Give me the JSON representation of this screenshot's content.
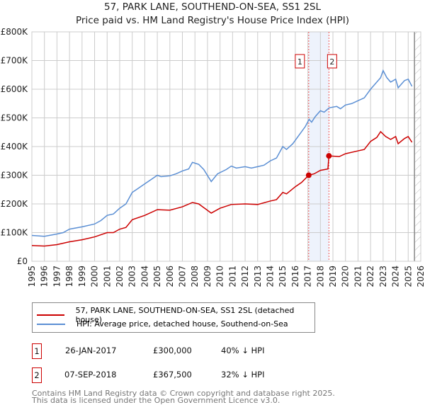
{
  "title": "57, PARK LANE, SOUTHEND-ON-SEA, SS1 2SL",
  "subtitle": "Price paid vs. HM Land Registry's House Price Index (HPI)",
  "chart_data": {
    "type": "line",
    "title": "57, PARK LANE, SOUTHEND-ON-SEA, SS1 2SL",
    "xlim": [
      1995,
      2026
    ],
    "ylim": [
      0,
      800000
    ],
    "xticks": [
      "1995",
      "1996",
      "1997",
      "1998",
      "1999",
      "2000",
      "2001",
      "2002",
      "2003",
      "2004",
      "2005",
      "2006",
      "2007",
      "2008",
      "2009",
      "2010",
      "2011",
      "2012",
      "2013",
      "2014",
      "2015",
      "2016",
      "2017",
      "2018",
      "2019",
      "2020",
      "2021",
      "2022",
      "2023",
      "2024",
      "2025",
      "2026"
    ],
    "yticks": [
      {
        "v": 0,
        "label": "£0"
      },
      {
        "v": 100000,
        "label": "£100K"
      },
      {
        "v": 200000,
        "label": "£200K"
      },
      {
        "v": 300000,
        "label": "£300K"
      },
      {
        "v": 400000,
        "label": "£400K"
      },
      {
        "v": 500000,
        "label": "£500K"
      },
      {
        "v": 600000,
        "label": "£600K"
      },
      {
        "v": 700000,
        "label": "£700K"
      },
      {
        "v": 800000,
        "label": "£800K"
      }
    ],
    "grid": true,
    "series": [
      {
        "name": "57, PARK LANE, SOUTHEND-ON-SEA, SS1 2SL (detached house)",
        "color": "#cc0000",
        "points": [
          [
            1995,
            55
          ],
          [
            1996,
            53
          ],
          [
            1997,
            58
          ],
          [
            1998,
            68
          ],
          [
            1999,
            75
          ],
          [
            2000,
            85
          ],
          [
            2001,
            100
          ],
          [
            2001.5,
            100
          ],
          [
            2002,
            112
          ],
          [
            2002.5,
            118
          ],
          [
            2003,
            145
          ],
          [
            2004,
            160
          ],
          [
            2005,
            180
          ],
          [
            2006,
            178
          ],
          [
            2007,
            190
          ],
          [
            2007.8,
            205
          ],
          [
            2008.3,
            200
          ],
          [
            2009.3,
            168
          ],
          [
            2010,
            185
          ],
          [
            2010.9,
            198
          ],
          [
            2012,
            200
          ],
          [
            2013,
            198
          ],
          [
            2014,
            210
          ],
          [
            2014.5,
            215
          ],
          [
            2015,
            240
          ],
          [
            2015.3,
            235
          ],
          [
            2016,
            260
          ],
          [
            2016.5,
            275
          ],
          [
            2017.07,
            300
          ],
          [
            2017.5,
            305
          ],
          [
            2018,
            317
          ],
          [
            2018.6,
            322
          ],
          [
            2018.68,
            367.5
          ],
          [
            2019.5,
            365
          ],
          [
            2020,
            375
          ],
          [
            2021,
            385
          ],
          [
            2021.5,
            390
          ],
          [
            2022,
            418
          ],
          [
            2022.5,
            432
          ],
          [
            2022.8,
            452
          ],
          [
            2023.2,
            435
          ],
          [
            2023.6,
            425
          ],
          [
            2024,
            435
          ],
          [
            2024.2,
            410
          ],
          [
            2024.7,
            428
          ],
          [
            2025,
            435
          ],
          [
            2025.3,
            415
          ]
        ]
      },
      {
        "name": "HPI: Average price, detached house, Southend-on-Sea",
        "color": "#5b8fd4",
        "points": [
          [
            1995,
            90
          ],
          [
            1996,
            87
          ],
          [
            1997,
            95
          ],
          [
            1997.5,
            100
          ],
          [
            1998,
            112
          ],
          [
            1999,
            120
          ],
          [
            2000,
            130
          ],
          [
            2000.5,
            142
          ],
          [
            2001,
            160
          ],
          [
            2001.5,
            165
          ],
          [
            2002,
            185
          ],
          [
            2002.5,
            200
          ],
          [
            2003,
            240
          ],
          [
            2003.5,
            255
          ],
          [
            2004,
            270
          ],
          [
            2004.5,
            285
          ],
          [
            2005,
            300
          ],
          [
            2005.3,
            295
          ],
          [
            2006,
            298
          ],
          [
            2006.5,
            305
          ],
          [
            2007,
            315
          ],
          [
            2007.5,
            322
          ],
          [
            2007.8,
            345
          ],
          [
            2008.3,
            338
          ],
          [
            2008.7,
            320
          ],
          [
            2009.3,
            278
          ],
          [
            2009.8,
            305
          ],
          [
            2010.5,
            320
          ],
          [
            2010.9,
            332
          ],
          [
            2011.3,
            325
          ],
          [
            2012,
            330
          ],
          [
            2012.5,
            325
          ],
          [
            2013,
            330
          ],
          [
            2013.5,
            335
          ],
          [
            2014,
            350
          ],
          [
            2014.5,
            360
          ],
          [
            2015,
            400
          ],
          [
            2015.3,
            390
          ],
          [
            2015.8,
            410
          ],
          [
            2016.3,
            440
          ],
          [
            2016.8,
            470
          ],
          [
            2017.1,
            495
          ],
          [
            2017.3,
            485
          ],
          [
            2017.6,
            505
          ],
          [
            2018,
            525
          ],
          [
            2018.3,
            520
          ],
          [
            2018.7,
            535
          ],
          [
            2019.3,
            540
          ],
          [
            2019.6,
            532
          ],
          [
            2020,
            545
          ],
          [
            2020.5,
            550
          ],
          [
            2021,
            560
          ],
          [
            2021.5,
            570
          ],
          [
            2022,
            600
          ],
          [
            2022.3,
            615
          ],
          [
            2022.8,
            640
          ],
          [
            2023,
            665
          ],
          [
            2023.3,
            640
          ],
          [
            2023.6,
            625
          ],
          [
            2024,
            635
          ],
          [
            2024.2,
            605
          ],
          [
            2024.7,
            630
          ],
          [
            2025,
            635
          ],
          [
            2025.3,
            610
          ]
        ]
      }
    ],
    "y_units": "thousands GBP",
    "sales": [
      {
        "label": "1",
        "x": 2017.07,
        "y": 300000
      },
      {
        "label": "2",
        "x": 2018.68,
        "y": 367500
      }
    ],
    "forecast_from": 2025.5,
    "legend_position": "bottom"
  },
  "legend": [
    {
      "label": "57, PARK LANE, SOUTHEND-ON-SEA, SS1 2SL (detached house)",
      "color": "#cc0000"
    },
    {
      "label": "HPI: Average price, detached house, Southend-on-Sea",
      "color": "#5b8fd4"
    }
  ],
  "transactions": [
    {
      "num": "1",
      "date": "26-JAN-2017",
      "price": "£300,000",
      "hpi": "40% ↓ HPI"
    },
    {
      "num": "2",
      "date": "07-SEP-2018",
      "price": "£367,500",
      "hpi": "32% ↓ HPI"
    }
  ],
  "footer": [
    "Contains HM Land Registry data © Crown copyright and database right 2025.",
    "This data is licensed under the Open Government Licence v3.0."
  ]
}
